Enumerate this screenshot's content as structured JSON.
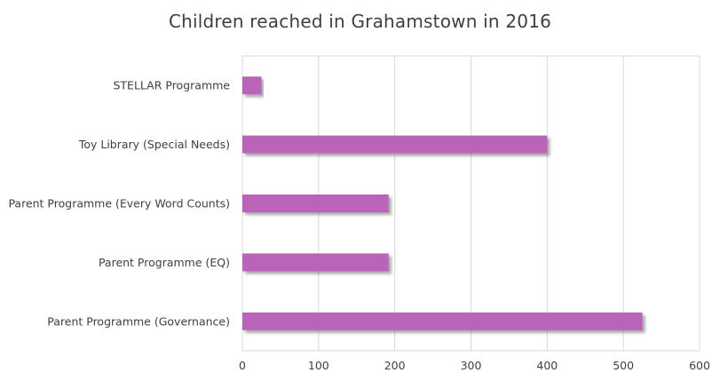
{
  "chart_data": {
    "type": "bar",
    "orientation": "horizontal",
    "title": "Children reached in Grahamstown in 2016",
    "xlabel": "",
    "ylabel": "",
    "categories": [
      "STELLAR Programme",
      "Toy Library (Special Needs)",
      "Parent Programme (Every Word Counts)",
      "Parent Programme (EQ)",
      "Parent Programme (Governance)"
    ],
    "values": [
      25,
      400,
      192,
      192,
      525
    ],
    "xlim": [
      0,
      600
    ],
    "x_ticks": [
      "0",
      "100",
      "200",
      "300",
      "400",
      "500",
      "600"
    ],
    "grid": "vertical",
    "legend": "none",
    "bar_color": "#b964b9"
  }
}
